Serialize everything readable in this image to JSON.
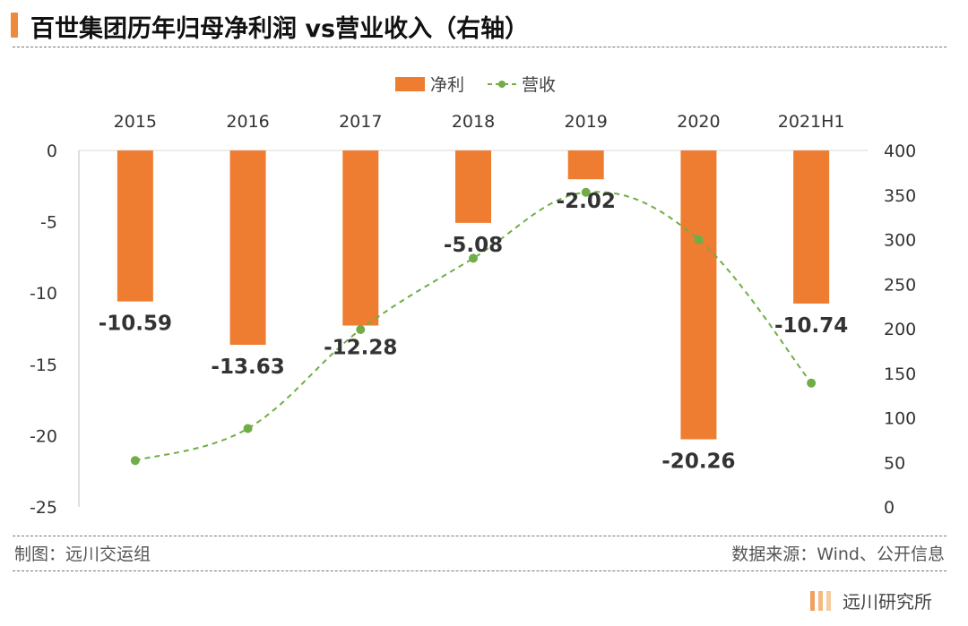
{
  "title": "百世集团历年归母净利润 vs营业收入（右轴）",
  "footer": {
    "source_left": "制图：远川交运组",
    "source_right": "数据来源：Wind、公开信息",
    "brand": "远川研究所"
  },
  "colors": {
    "bar": "#ee7d31",
    "line": "#70ad47",
    "accent": "#ee8a3c"
  },
  "chart_data": {
    "type": "bar",
    "legend_placement": "top-center",
    "categories": [
      "2015",
      "2016",
      "2017",
      "2018",
      "2019",
      "2020",
      "2021H1"
    ],
    "series": [
      {
        "name": "净利",
        "type": "bar",
        "axis": "left",
        "values": [
          -10.59,
          -13.63,
          -12.28,
          -5.08,
          -2.02,
          -20.26,
          -10.74
        ],
        "labels": [
          "-10.59",
          "-13.63",
          "-12.28",
          "-5.08",
          "-2.02",
          "-20.26",
          "-10.74"
        ]
      },
      {
        "name": "营收",
        "type": "line",
        "style": "dashed-smooth-with-markers",
        "axis": "right",
        "values": [
          52,
          88,
          199,
          279,
          353,
          300,
          139
        ]
      }
    ],
    "left_axis": {
      "ylim": [
        -25,
        0
      ],
      "ticks": [
        "0",
        "-5",
        "-10",
        "-15",
        "-20",
        "-25"
      ]
    },
    "right_axis": {
      "ylim": [
        0,
        400
      ],
      "ticks": [
        "400",
        "350",
        "300",
        "250",
        "200",
        "150",
        "100",
        "50",
        "0"
      ]
    },
    "grid": false
  }
}
